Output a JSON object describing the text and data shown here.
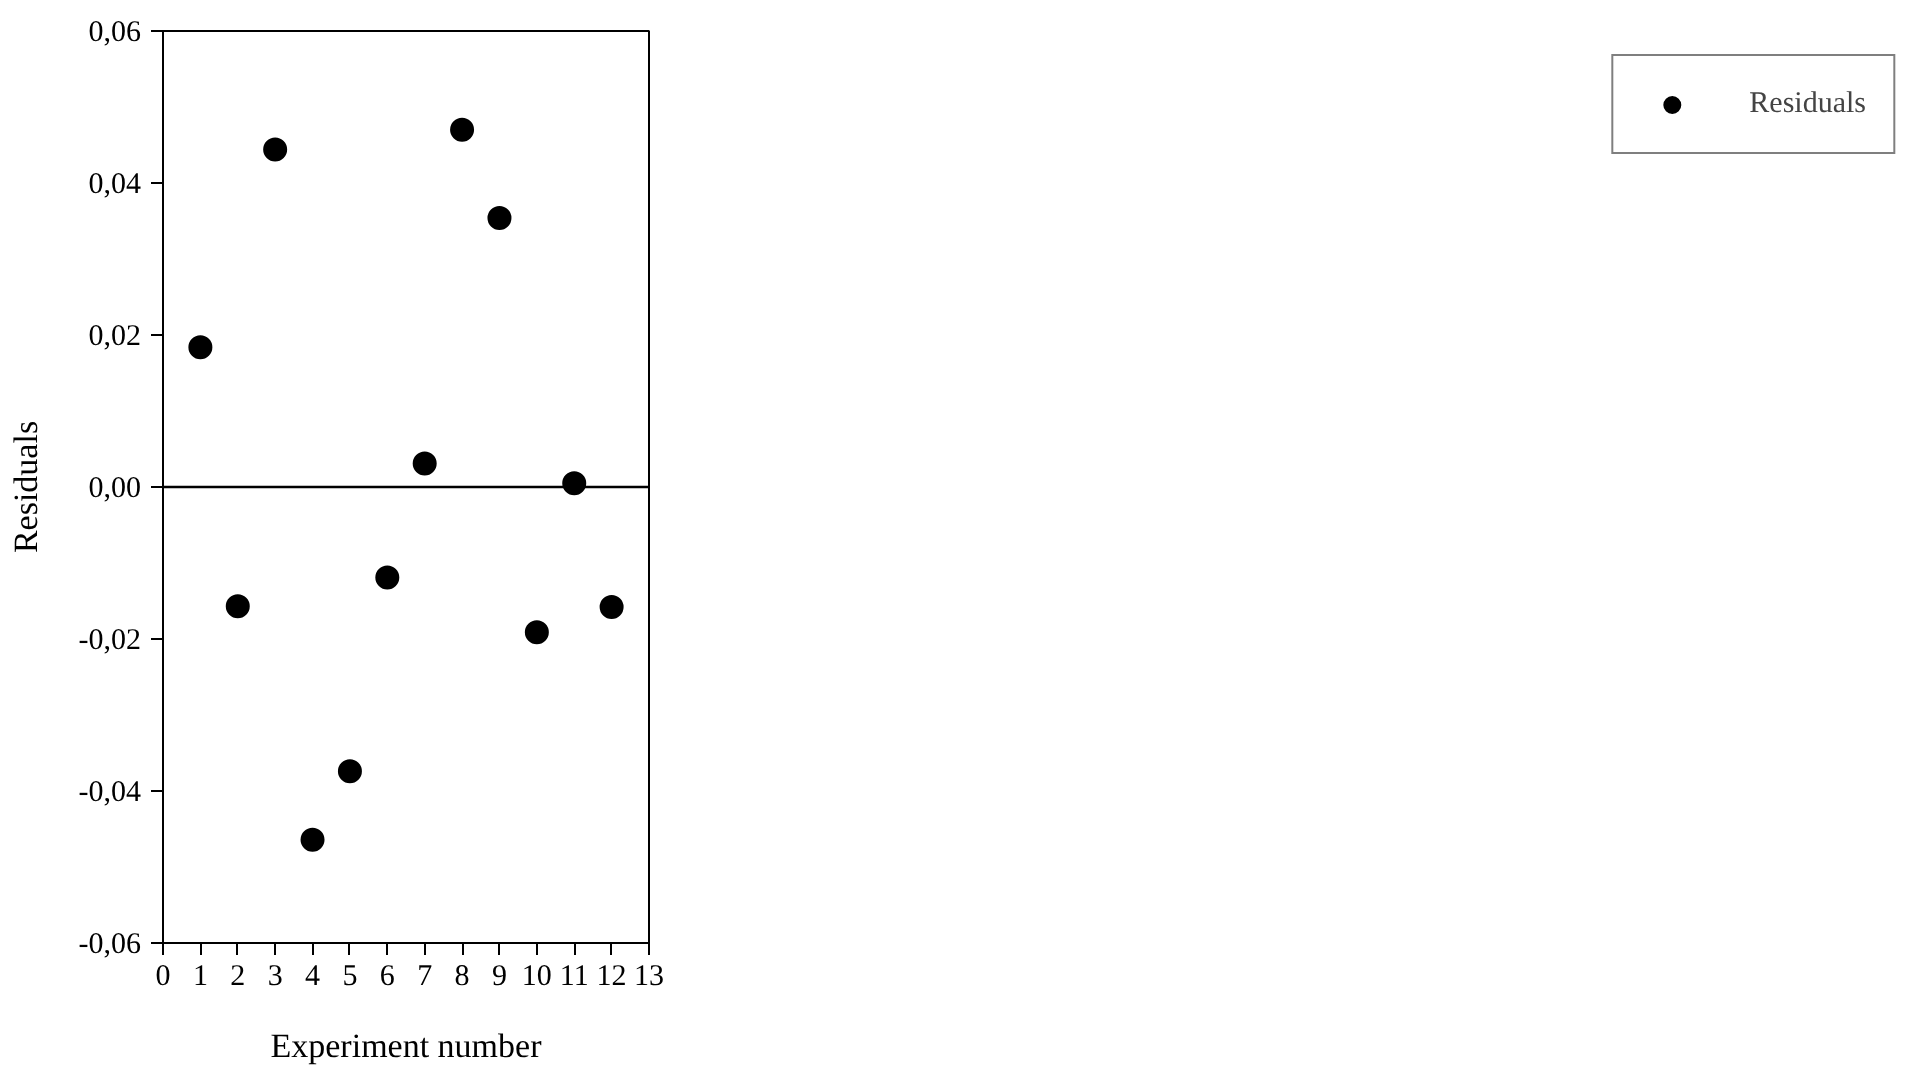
{
  "chart_data": {
    "type": "scatter",
    "xlabel": "Experiment number",
    "ylabel": "Residuals",
    "x": [
      1,
      2,
      3,
      4,
      5,
      6,
      7,
      8,
      9,
      10,
      11,
      12
    ],
    "series": [
      {
        "name": "Residuals",
        "color": "#000000",
        "values": [
          0.0184,
          -0.0157,
          0.0444,
          -0.0464,
          -0.0374,
          -0.0119,
          0.0031,
          0.047,
          0.0354,
          -0.0191,
          0.0005,
          -0.0158
        ]
      }
    ],
    "xlim": [
      0,
      13
    ],
    "xticks": [
      0,
      1,
      2,
      3,
      4,
      5,
      6,
      7,
      8,
      9,
      10,
      11,
      12,
      13
    ],
    "ylim": [
      -0.06,
      0.06
    ],
    "yticks": [
      {
        "value": -0.06,
        "label": "-0,06"
      },
      {
        "value": -0.04,
        "label": "-0,04"
      },
      {
        "value": -0.02,
        "label": "-0,02"
      },
      {
        "value": 0,
        "label": "0,00"
      },
      {
        "value": 0.02,
        "label": "0,02"
      },
      {
        "value": 0.04,
        "label": "0,04"
      },
      {
        "value": 0.06,
        "label": "0,06"
      }
    ],
    "ref_lines": [
      {
        "axis": "y",
        "value": 0,
        "color": "#000000"
      }
    ],
    "marker": "circle",
    "grid": false,
    "legend": "right"
  }
}
